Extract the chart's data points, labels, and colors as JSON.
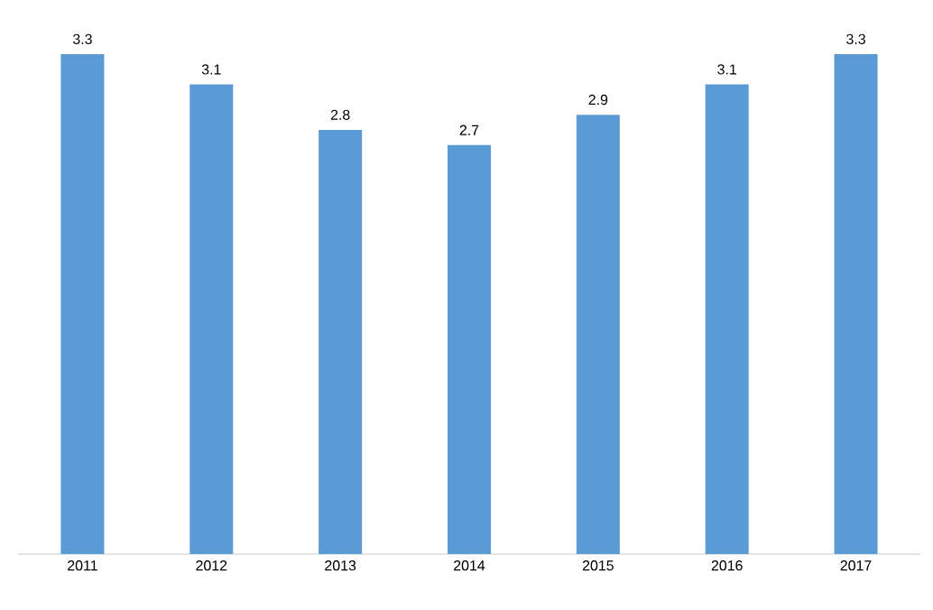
{
  "chart_data": {
    "type": "bar",
    "categories": [
      "2011",
      "2012",
      "2013",
      "2014",
      "2015",
      "2016",
      "2017"
    ],
    "values": [
      3.3,
      3.1,
      2.8,
      2.7,
      2.9,
      3.1,
      3.3
    ],
    "color": "#5b9bd5",
    "data_labels": true
  }
}
